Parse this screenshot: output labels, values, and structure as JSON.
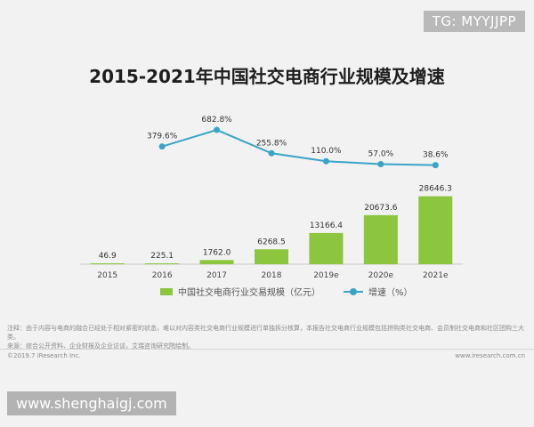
{
  "watermark_top": "TG: MYYJJPP",
  "watermark_bottom": "www.shenghaigj.com",
  "chart_data": {
    "type": "bar",
    "title": "2015-2021年中国社交电商行业规模及增速",
    "categories": [
      "2015",
      "2016",
      "2017",
      "2018",
      "2019e",
      "2020e",
      "2021e"
    ],
    "series": [
      {
        "name": "中国社交电商行业交易规模（亿元）",
        "kind": "bar",
        "color": "#8cc63e",
        "values": [
          46.9,
          225.1,
          1762.0,
          6268.5,
          13166.4,
          20673.6,
          28646.3
        ],
        "labels": [
          "46.9",
          "225.1",
          "1762.0",
          "6268.5",
          "13166.4",
          "20673.6",
          "28646.3"
        ]
      },
      {
        "name": "增速（%）",
        "kind": "line",
        "color": "#3aa4c8",
        "values": [
          null,
          379.6,
          682.8,
          255.8,
          110.0,
          57.0,
          38.6
        ],
        "labels": [
          "",
          "379.6%",
          "682.8%",
          "255.8%",
          "110.0%",
          "57.0%",
          "38.6%"
        ]
      }
    ],
    "ylim_bar": [
      0,
      30000
    ],
    "ylim_line": [
      0,
      700
    ],
    "grid": false,
    "legend": "bottom"
  },
  "notes": {
    "line1": "注释：由于内容与电商的融合已经处于相对紧密的状态，难以对内容类社交电商行业规模进行单独拆分核算，本报告社交电商行业规模包括拼购类社交电商、会员制社交电商和社区团购三大类。",
    "line2": "来源：综合公开资料、企业财报及企业访谈，艾瑞咨询研究院绘制。"
  },
  "footer": {
    "copyright": "©2019.7 iResearch Inc.",
    "website": "www.iresearch.com.cn"
  }
}
